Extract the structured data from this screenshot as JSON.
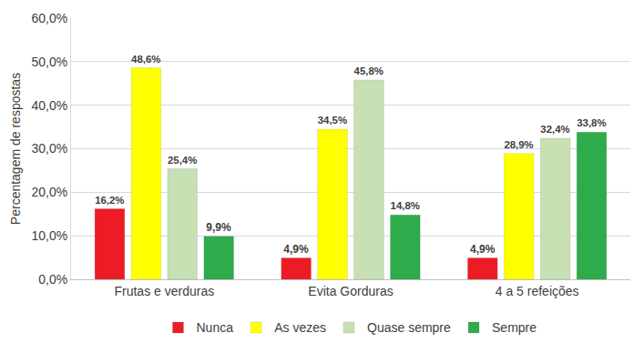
{
  "chart_data": {
    "type": "bar",
    "y_label": "Percentagem de respostas",
    "categories": [
      "Frutas e verduras",
      "Evita Gorduras",
      "4 a 5 refeições"
    ],
    "series": [
      {
        "name": "Nunca",
        "color": "#ed1c24",
        "values": [
          16.2,
          4.9,
          4.9
        ],
        "value_labels": [
          "16,2%",
          "4,9%",
          "4,9%"
        ]
      },
      {
        "name": "As vezes",
        "color": "#ffff00",
        "values": [
          48.6,
          34.5,
          28.9
        ],
        "value_labels": [
          "48,6%",
          "34,5%",
          "28,9%"
        ]
      },
      {
        "name": "Quase sempre",
        "color": "#c6e0b4",
        "values": [
          25.4,
          45.8,
          32.4
        ],
        "value_labels": [
          "25,4%",
          "45,8%",
          "32,4%"
        ]
      },
      {
        "name": "Sempre",
        "color": "#2eab4b",
        "values": [
          9.9,
          14.8,
          33.8
        ],
        "value_labels": [
          "9,9%",
          "14,8%",
          "33,8%"
        ]
      }
    ],
    "ylim": [
      0,
      60
    ],
    "yticks": [
      {
        "value": 0,
        "label": "0,0%"
      },
      {
        "value": 10,
        "label": "10,0%"
      },
      {
        "value": 20,
        "label": "20,0%"
      },
      {
        "value": 30,
        "label": "30,0%"
      },
      {
        "value": 40,
        "label": "40,0%"
      },
      {
        "value": 50,
        "label": "50,0%"
      },
      {
        "value": 60,
        "label": "60,0%"
      }
    ],
    "grid": true,
    "legend": "bottom",
    "data_labels": true
  }
}
